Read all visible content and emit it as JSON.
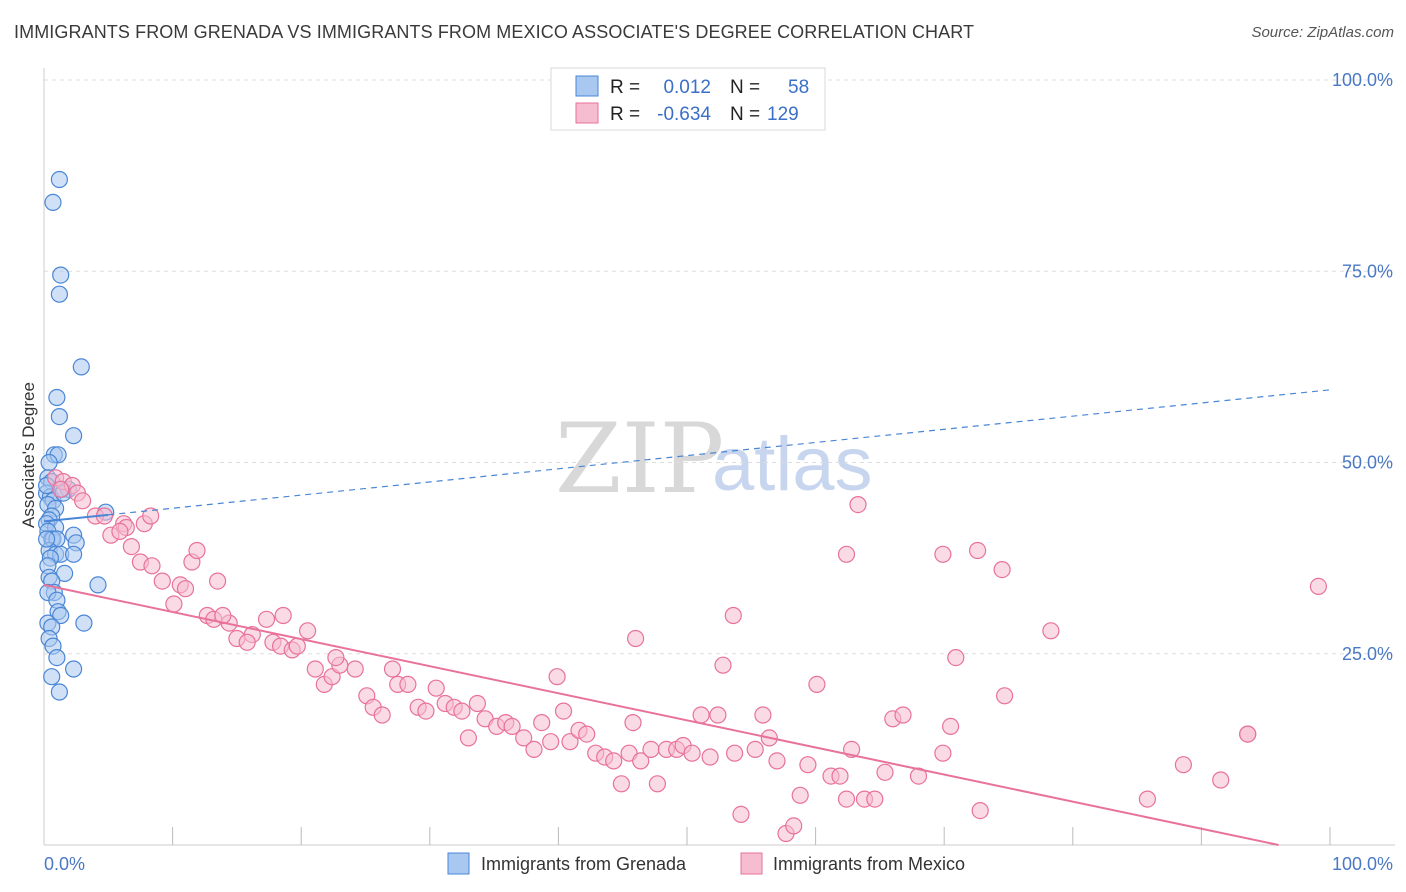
{
  "title": "IMMIGRANTS FROM GRENADA VS IMMIGRANTS FROM MEXICO ASSOCIATE'S DEGREE CORRELATION CHART",
  "source": "Source: ZipAtlas.com",
  "watermark": {
    "zip": "ZIP",
    "atlas": "atlas"
  },
  "legend_box": {
    "rows": [
      {
        "r_label": "R =",
        "r_value": "0.012",
        "n_label": "N =",
        "n_value": "58",
        "color": "#a9c8f0"
      },
      {
        "r_label": "R =",
        "r_value": "-0.634",
        "n_label": "N =",
        "n_value": "129",
        "color": "#f6bcd0"
      }
    ]
  },
  "chart_data": {
    "type": "scatter",
    "title": "IMMIGRANTS FROM GRENADA VS IMMIGRANTS FROM MEXICO ASSOCIATE'S DEGREE CORRELATION CHART",
    "xlabel": "",
    "ylabel": "Associate's Degree",
    "x_tick_labels": [
      "0.0%",
      "100.0%"
    ],
    "y_tick_labels": [
      "100.0%",
      "75.0%",
      "50.0%",
      "25.0%"
    ],
    "y_ticks": [
      100,
      75,
      50,
      25
    ],
    "xlim": [
      0,
      100
    ],
    "ylim": [
      0,
      100
    ],
    "grid": true,
    "legend_position": "bottom",
    "series": [
      {
        "name": "Immigrants from Grenada",
        "color": "#4a86d6",
        "fill": "#a9c8f0",
        "trend": {
          "style": "solid-then-dashed",
          "x": [
            0,
            100
          ],
          "y": [
            42.3,
            59.5
          ],
          "solid_until_x": 5
        },
        "points": [
          [
            1.2,
            87
          ],
          [
            0.7,
            84
          ],
          [
            1.3,
            74.5
          ],
          [
            1.2,
            72
          ],
          [
            2.9,
            62.5
          ],
          [
            1.0,
            58.5
          ],
          [
            1.2,
            56
          ],
          [
            2.3,
            53.5
          ],
          [
            0.8,
            51
          ],
          [
            1.1,
            51
          ],
          [
            0.4,
            50
          ],
          [
            0.3,
            48
          ],
          [
            0.6,
            47.5
          ],
          [
            1.4,
            46.5
          ],
          [
            1.9,
            46.5
          ],
          [
            0.2,
            46
          ],
          [
            0.5,
            45.5
          ],
          [
            0.7,
            45
          ],
          [
            0.3,
            44.5
          ],
          [
            0.9,
            44
          ],
          [
            4.8,
            43.5
          ],
          [
            0.6,
            43
          ],
          [
            0.4,
            42.5
          ],
          [
            0.2,
            42
          ],
          [
            0.9,
            41.5
          ],
          [
            0.3,
            41
          ],
          [
            2.3,
            40.5
          ],
          [
            0.6,
            40
          ],
          [
            0.7,
            40
          ],
          [
            1.0,
            40
          ],
          [
            2.5,
            39.5
          ],
          [
            0.4,
            38.5
          ],
          [
            0.9,
            38
          ],
          [
            1.3,
            38
          ],
          [
            2.3,
            38
          ],
          [
            0.5,
            37.5
          ],
          [
            0.3,
            36.5
          ],
          [
            1.6,
            35.5
          ],
          [
            0.4,
            35
          ],
          [
            0.6,
            34.5
          ],
          [
            4.2,
            34
          ],
          [
            0.8,
            33
          ],
          [
            0.3,
            33
          ],
          [
            1.0,
            32
          ],
          [
            1.1,
            30.5
          ],
          [
            1.3,
            30
          ],
          [
            0.3,
            29
          ],
          [
            3.1,
            29
          ],
          [
            0.6,
            28.5
          ],
          [
            0.4,
            27
          ],
          [
            0.7,
            26
          ],
          [
            1.0,
            24.5
          ],
          [
            2.3,
            23
          ],
          [
            0.6,
            22
          ],
          [
            1.2,
            20
          ],
          [
            0.2,
            40
          ],
          [
            0.2,
            47
          ],
          [
            1.5,
            46
          ]
        ]
      },
      {
        "name": "Immigrants from Mexico",
        "color": "#e8729b",
        "fill": "#f6bcd0",
        "trend": {
          "style": "solid",
          "x": [
            0,
            96
          ],
          "y": [
            34,
            0
          ]
        },
        "points": [
          [
            0.9,
            48
          ],
          [
            1.5,
            47.5
          ],
          [
            2.2,
            47
          ],
          [
            1.3,
            46.5
          ],
          [
            2.6,
            46
          ],
          [
            3.0,
            45
          ],
          [
            4.0,
            43
          ],
          [
            4.7,
            43
          ],
          [
            6.2,
            42
          ],
          [
            6.4,
            41.5
          ],
          [
            7.8,
            42
          ],
          [
            8.3,
            43
          ],
          [
            5.2,
            40.5
          ],
          [
            5.9,
            41
          ],
          [
            6.8,
            39
          ],
          [
            7.5,
            37
          ],
          [
            8.4,
            36.5
          ],
          [
            9.2,
            34.5
          ],
          [
            10.6,
            34
          ],
          [
            11.0,
            33.5
          ],
          [
            10.1,
            31.5
          ],
          [
            11.5,
            37
          ],
          [
            11.9,
            38.5
          ],
          [
            13.5,
            34.5
          ],
          [
            12.7,
            30
          ],
          [
            13.2,
            29.5
          ],
          [
            14.4,
            29
          ],
          [
            13.9,
            30
          ],
          [
            15.0,
            27
          ],
          [
            16.2,
            27.5
          ],
          [
            15.8,
            26.5
          ],
          [
            17.3,
            29.5
          ],
          [
            17.8,
            26.5
          ],
          [
            18.4,
            26
          ],
          [
            19.3,
            25.5
          ],
          [
            18.6,
            30
          ],
          [
            19.7,
            26
          ],
          [
            20.5,
            28
          ],
          [
            21.1,
            23
          ],
          [
            21.8,
            21
          ],
          [
            22.4,
            22
          ],
          [
            23.0,
            23.5
          ],
          [
            22.7,
            24.5
          ],
          [
            24.2,
            23
          ],
          [
            25.1,
            19.5
          ],
          [
            25.6,
            18
          ],
          [
            26.3,
            17
          ],
          [
            27.1,
            23
          ],
          [
            27.5,
            21
          ],
          [
            28.3,
            21
          ],
          [
            29.1,
            18
          ],
          [
            29.7,
            17.5
          ],
          [
            30.5,
            20.5
          ],
          [
            31.2,
            18.5
          ],
          [
            31.9,
            18
          ],
          [
            32.5,
            17.5
          ],
          [
            33.0,
            14
          ],
          [
            33.7,
            18.5
          ],
          [
            34.3,
            16.5
          ],
          [
            35.2,
            15.5
          ],
          [
            35.9,
            16
          ],
          [
            36.4,
            15.5
          ],
          [
            37.3,
            14
          ],
          [
            38.1,
            12.5
          ],
          [
            38.7,
            16
          ],
          [
            39.4,
            13.5
          ],
          [
            39.9,
            22
          ],
          [
            40.4,
            17.5
          ],
          [
            40.9,
            13.5
          ],
          [
            41.6,
            15
          ],
          [
            42.2,
            14.5
          ],
          [
            42.9,
            12
          ],
          [
            43.6,
            11.5
          ],
          [
            44.3,
            11
          ],
          [
            44.9,
            8
          ],
          [
            45.5,
            12
          ],
          [
            45.8,
            16
          ],
          [
            46.4,
            11
          ],
          [
            47.2,
            12.5
          ],
          [
            47.7,
            8
          ],
          [
            48.4,
            12.5
          ],
          [
            49.2,
            12.5
          ],
          [
            49.7,
            13
          ],
          [
            50.4,
            12
          ],
          [
            51.1,
            17
          ],
          [
            51.8,
            11.5
          ],
          [
            52.4,
            17
          ],
          [
            52.8,
            23.5
          ],
          [
            53.7,
            12
          ],
          [
            54.2,
            4
          ],
          [
            55.3,
            12.5
          ],
          [
            55.9,
            17
          ],
          [
            56.4,
            14
          ],
          [
            57.0,
            11
          ],
          [
            57.7,
            1.5
          ],
          [
            58.3,
            2.5
          ],
          [
            58.8,
            6.5
          ],
          [
            59.4,
            10.5
          ],
          [
            60.1,
            21
          ],
          [
            61.2,
            9
          ],
          [
            61.9,
            9
          ],
          [
            62.4,
            6
          ],
          [
            62.8,
            12.5
          ],
          [
            63.3,
            44.5
          ],
          [
            63.8,
            6
          ],
          [
            64.6,
            6
          ],
          [
            65.4,
            9.5
          ],
          [
            66.0,
            16.5
          ],
          [
            66.8,
            17
          ],
          [
            68.0,
            9
          ],
          [
            69.9,
            12
          ],
          [
            70.5,
            15.5
          ],
          [
            70.9,
            24.5
          ],
          [
            72.8,
            4.5
          ],
          [
            74.7,
            19.5
          ],
          [
            78.3,
            28
          ],
          [
            88.6,
            10.5
          ],
          [
            91.5,
            8.5
          ],
          [
            93.6,
            14.5
          ],
          [
            99.1,
            33.8
          ],
          [
            85.8,
            6
          ],
          [
            93.6,
            14.5
          ],
          [
            46.0,
            27
          ],
          [
            53.6,
            30
          ],
          [
            62.4,
            38
          ],
          [
            69.9,
            38
          ],
          [
            72.6,
            38.5
          ],
          [
            74.5,
            36
          ]
        ]
      }
    ]
  },
  "bottom_legend": [
    {
      "label": "Immigrants from Grenada",
      "color": "#a9c8f0"
    },
    {
      "label": "Immigrants from Mexico",
      "color": "#f6bcd0"
    }
  ]
}
